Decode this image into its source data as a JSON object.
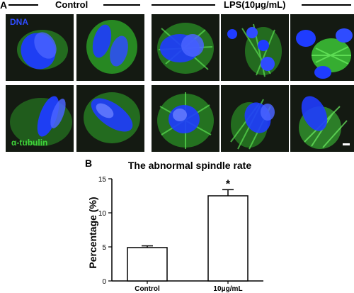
{
  "panel_a": {
    "letter": "A",
    "groups": [
      "Control",
      "LPS(10μg/mL)"
    ],
    "labels": {
      "dna": "DNA",
      "tubulin": "α-tubulin"
    }
  },
  "panel_b": {
    "letter": "B"
  },
  "colors": {
    "dna": "#2f4cff",
    "tubulin": "#3fd23a",
    "bar_fill": "#ffffff",
    "bar_stroke": "#000000"
  },
  "chart_data": {
    "type": "bar",
    "title": "The abnormal spindle rate",
    "ylabel": "Percentage  (%)",
    "xlabel": "",
    "categories": [
      "Control",
      "10μg/mL"
    ],
    "values": [
      4.9,
      12.5
    ],
    "error": [
      0.25,
      0.9
    ],
    "annotations": [
      "",
      "*"
    ],
    "ylim": [
      0,
      15
    ],
    "yticks": [
      0,
      5,
      10,
      15
    ],
    "grid": false
  }
}
